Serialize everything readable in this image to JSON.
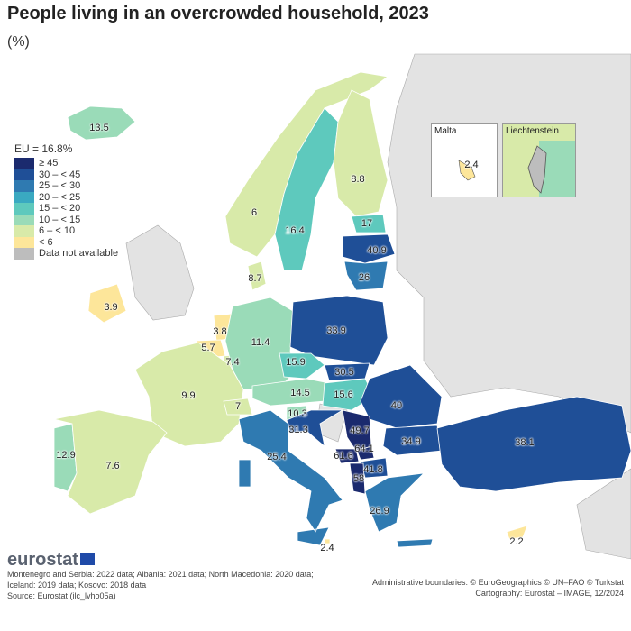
{
  "title": "People living in an overcrowded household, 2023",
  "subtitle": "(%)",
  "legend": {
    "eu": "EU = 16.8%",
    "classes": [
      {
        "label": "≥ 45",
        "color": "#1b2a6e"
      },
      {
        "label": "30 – < 45",
        "color": "#1f4f97"
      },
      {
        "label": "25 – < 30",
        "color": "#2f7ab1"
      },
      {
        "label": "20 – < 25",
        "color": "#3aa9c1"
      },
      {
        "label": "15 – < 20",
        "color": "#5ec9bd"
      },
      {
        "label": "10 – < 15",
        "color": "#9adbb8"
      },
      {
        "label": "6 – < 10",
        "color": "#d8eaa9"
      },
      {
        "label": "< 6",
        "color": "#fde69a"
      },
      {
        "label": "Data not available",
        "color": "#bdbdbd"
      }
    ]
  },
  "countries": {
    "IS": "13.5",
    "NO": "6",
    "SE": "16.4",
    "FI": "8.8",
    "EE": "17",
    "LV": "40.9",
    "LT": "26",
    "DK": "8.7",
    "IE": "3.9",
    "NL": "3.8",
    "BE": "5.7",
    "LU": "7.4",
    "DE": "11.4",
    "PL": "33.9",
    "CZ": "15.9",
    "SK": "30.5",
    "FR": "9.9",
    "CH": "7",
    "AT": "14.5",
    "HU": "15.6",
    "SI": "10.3",
    "HR": "31.3",
    "RO": "40",
    "RS": "49.7",
    "XK": "64.1",
    "ME": "61.6",
    "MK": "41.8",
    "AL": "58",
    "BG": "34.9",
    "EL": "26.9",
    "IT": "25.4",
    "PT": "12.9",
    "ES": "7.6",
    "TR": "38.1",
    "MT": "2.4",
    "CY": "2.2"
  },
  "insets": {
    "malta": {
      "title": "Malta",
      "value": "2.4"
    },
    "liechtenstein": {
      "title": "Liechtenstein"
    }
  },
  "footer": {
    "logo": "eurostat",
    "notes": [
      "Montenegro and Serbia: 2022 data; Albania: 2021 data; North Macedonia: 2020 data;",
      "Iceland: 2019 data; Kosovo: 2018 data",
      "Source: Eurostat (ilc_lvho05a)"
    ],
    "credits": [
      "Administrative boundaries: © EuroGeographics © UN–FAO © Turkstat",
      "Cartography: Eurostat – IMAGE, 12/2024"
    ]
  }
}
